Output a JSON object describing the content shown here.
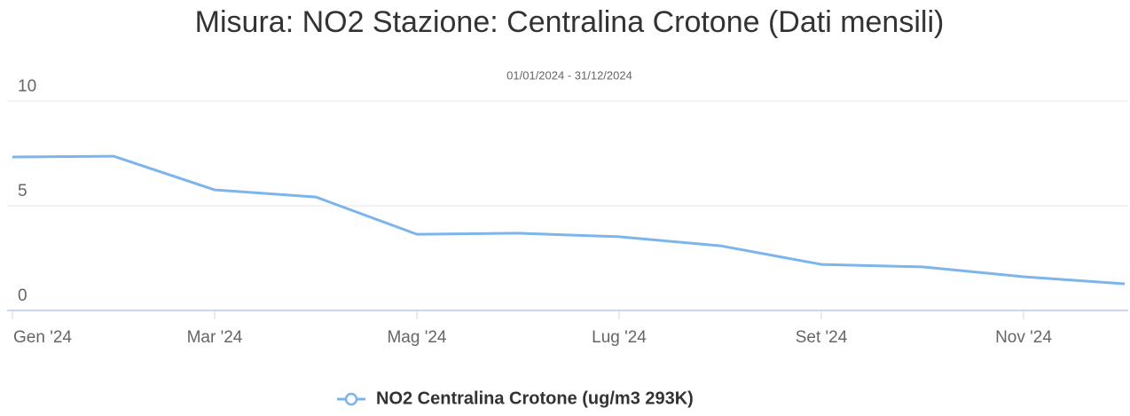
{
  "chart_data": {
    "type": "line",
    "title": "Misura: NO2 Stazione: Centralina Crotone (Dati mensili)",
    "subtitle": "01/01/2024 - 31/12/2024",
    "categories": [
      "Gen '24",
      null,
      "Mar '24",
      null,
      "Mag '24",
      null,
      "Lug '24",
      null,
      "Set '24",
      null,
      "Nov '24",
      null
    ],
    "series": [
      {
        "name": "NO2 Centralina Crotone (ug/m3 293K)",
        "color": "#7cb5ec",
        "values": [
          7.33,
          7.37,
          5.76,
          5.42,
          3.64,
          3.69,
          3.52,
          3.09,
          2.2,
          2.08,
          1.61,
          1.27
        ]
      }
    ],
    "ylim": [
      0,
      10
    ],
    "yticks": [
      0,
      5,
      10
    ],
    "grid": true
  }
}
